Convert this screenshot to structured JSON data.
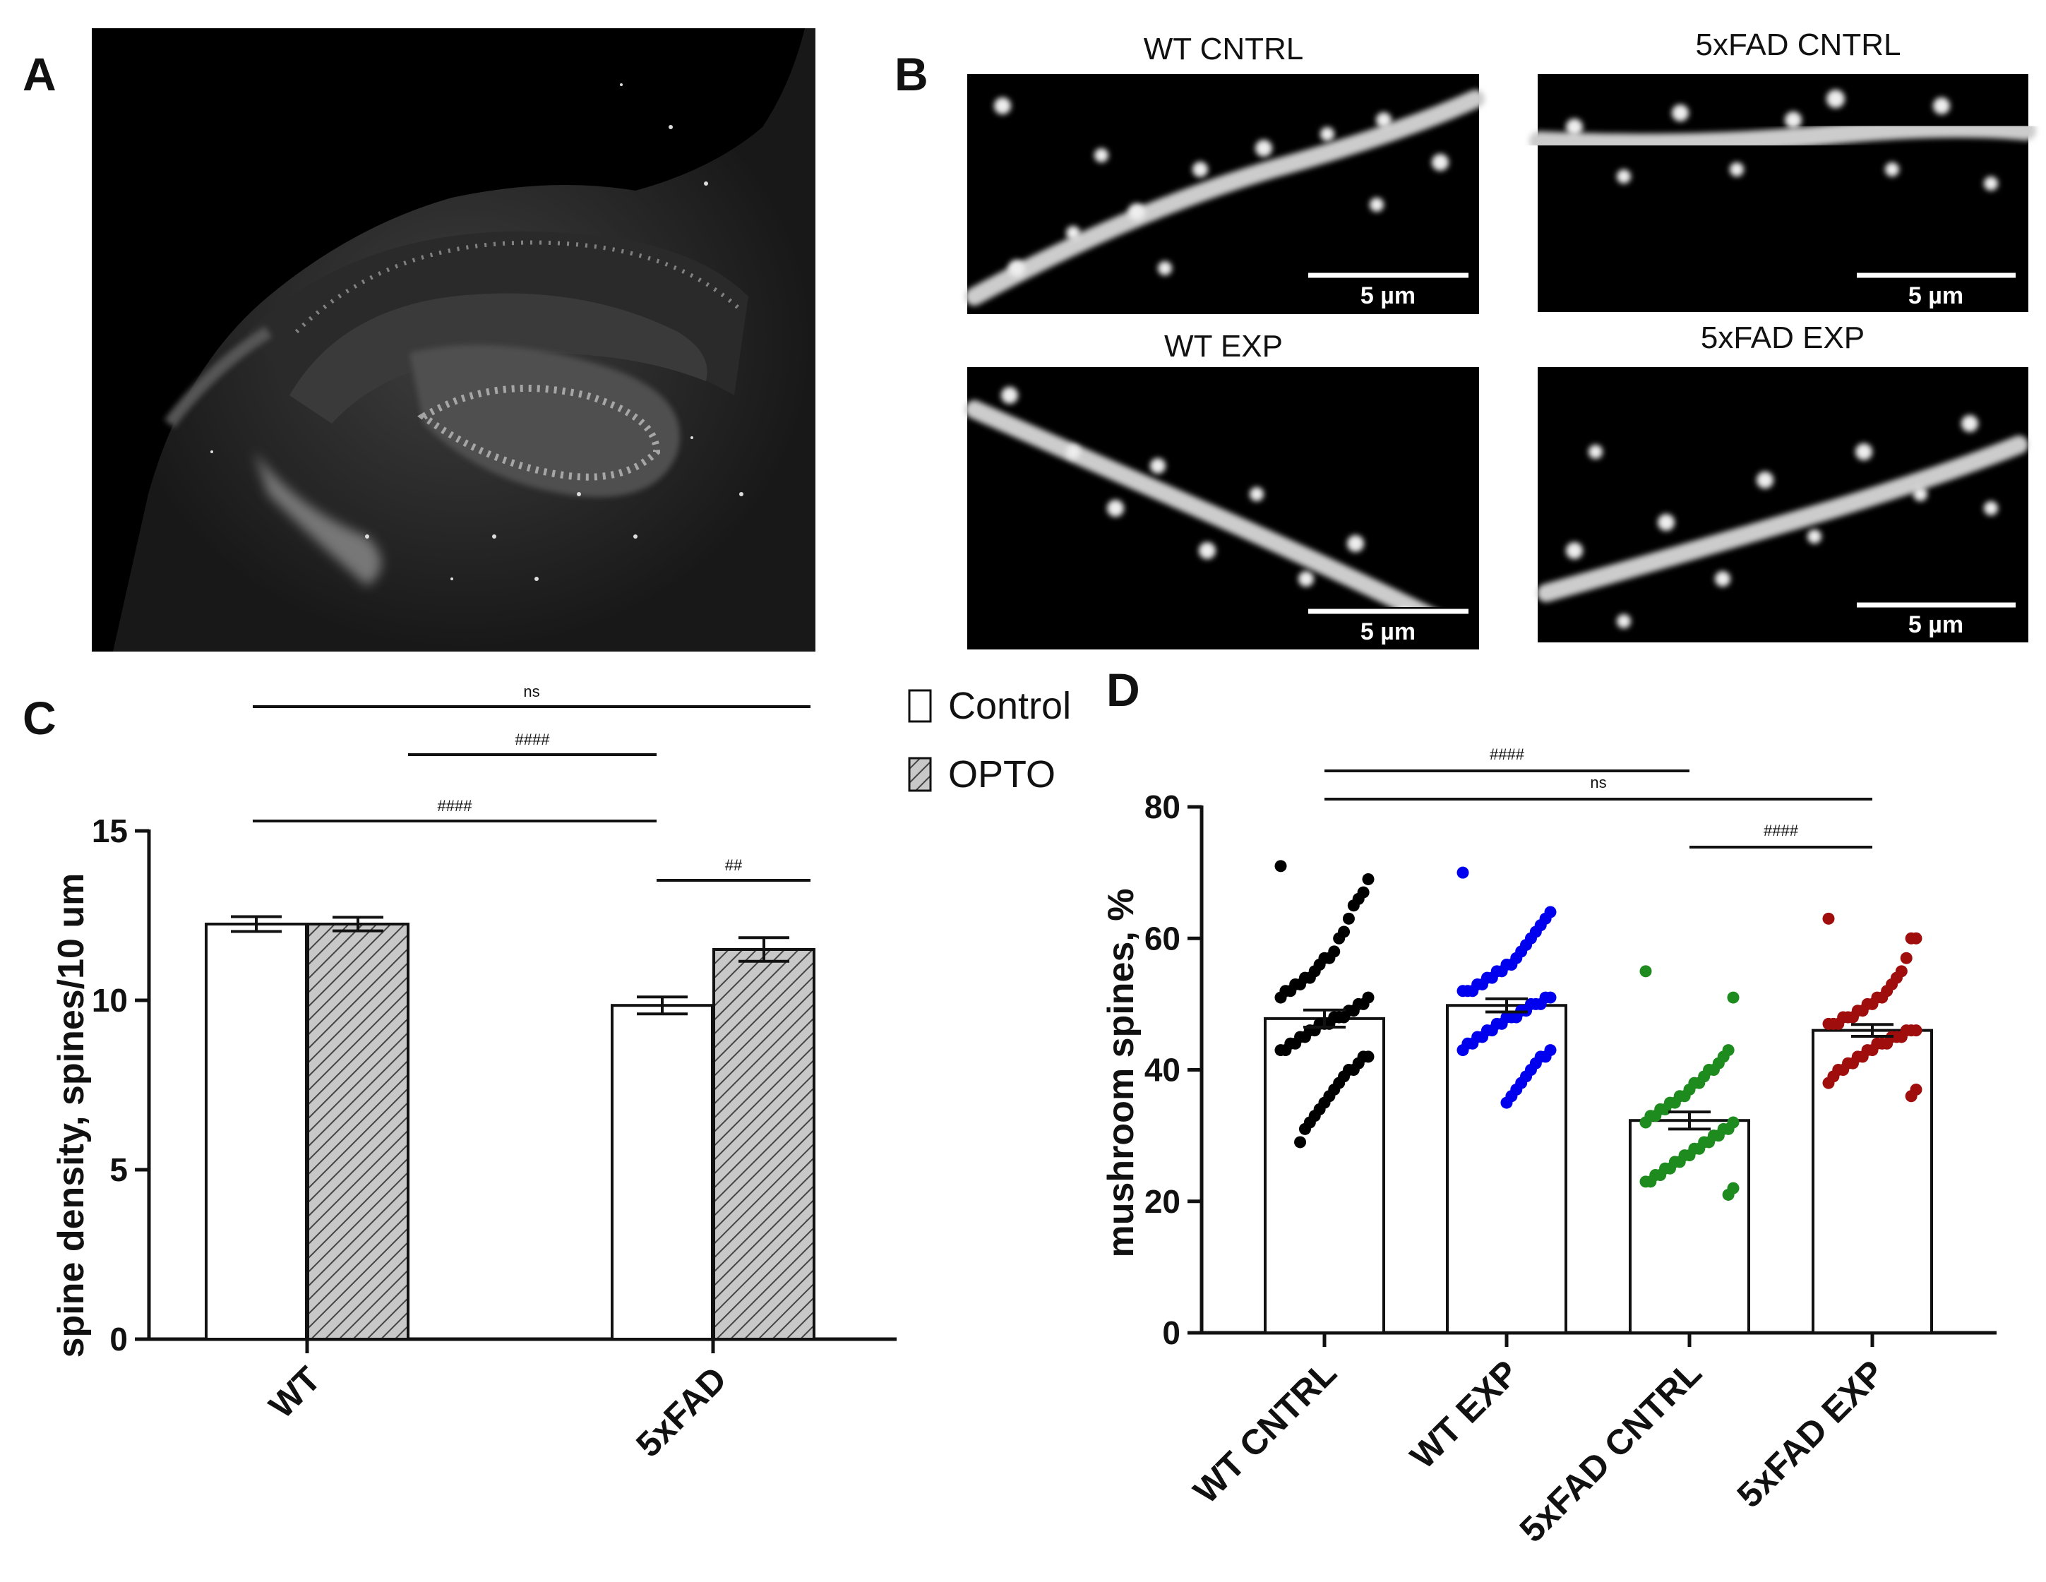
{
  "panels": {
    "A": {
      "letter": "A"
    },
    "B": {
      "letter": "B",
      "scale_bar": "5 µm",
      "images": [
        {
          "title": "WT CNTRL"
        },
        {
          "title": "5xFAD CNTRL"
        },
        {
          "title": "WT EXP"
        },
        {
          "title": "5xFAD EXP"
        }
      ]
    },
    "C": {
      "letter": "C"
    },
    "D": {
      "letter": "D"
    }
  },
  "legend": {
    "items": [
      {
        "label": "Control",
        "pattern": "open"
      },
      {
        "label": "OPTO",
        "pattern": "hatched"
      }
    ]
  },
  "colors": {
    "wt_cntrl": "#000000",
    "wt_exp": "#0000ee",
    "fad_cntrl": "#1e8b1e",
    "fad_exp": "#a00d0d",
    "hatch_fill": "#bbbbbb"
  },
  "chart_data": [
    {
      "panel": "C",
      "type": "bar",
      "ylabel": "spine density, spines/10 um",
      "xlabel": "",
      "ylim": [
        0,
        15
      ],
      "yticks": [
        "0",
        "5",
        "10",
        "15"
      ],
      "categories": [
        "WT",
        "5xFAD"
      ],
      "series": [
        {
          "name": "Control",
          "values": [
            12.25,
            9.85
          ],
          "errors": [
            0.22,
            0.25
          ]
        },
        {
          "name": "OPTO",
          "values": [
            12.25,
            11.5
          ],
          "errors": [
            0.2,
            0.35
          ]
        }
      ],
      "significance": [
        {
          "label": "ns",
          "from": "WT Control",
          "to": "5xFAD OPTO"
        },
        {
          "label": "####",
          "from": "WT OPTO",
          "to": "5xFAD Control"
        },
        {
          "label": "####",
          "from": "WT Control",
          "to": "5xFAD Control"
        },
        {
          "label": "##",
          "from": "5xFAD Control",
          "to": "5xFAD OPTO"
        }
      ]
    },
    {
      "panel": "D",
      "type": "bar",
      "ylabel": "mushroom spines, %",
      "xlabel": "",
      "ylim": [
        0,
        80
      ],
      "yticks": [
        "0",
        "20",
        "40",
        "60",
        "80"
      ],
      "categories": [
        "WT CNTRL",
        "WT EXP",
        "5xFAD CNTRL",
        "5xFAD EXP"
      ],
      "values": [
        47.8,
        49.8,
        32.3,
        46.0
      ],
      "errors": [
        1.3,
        1.0,
        1.3,
        0.9
      ],
      "points": [
        [
          71,
          69,
          67,
          66,
          65,
          63,
          61,
          60,
          58,
          57,
          57,
          56,
          55,
          54,
          54,
          53,
          53,
          52,
          52,
          51,
          51,
          50,
          50,
          49,
          49,
          48,
          48,
          48,
          47,
          47,
          47,
          46,
          46,
          45,
          45,
          44,
          44,
          43,
          43,
          42,
          42,
          41,
          40,
          40,
          39,
          38,
          37,
          36,
          35,
          34,
          33,
          32,
          31,
          29
        ],
        [
          70,
          64,
          63,
          62,
          61,
          60,
          59,
          58,
          57,
          56,
          56,
          55,
          55,
          54,
          54,
          53,
          53,
          52,
          52,
          52,
          51,
          51,
          50,
          50,
          50,
          49,
          49,
          48,
          48,
          48,
          47,
          47,
          46,
          46,
          45,
          45,
          44,
          44,
          43,
          43,
          42,
          42,
          41,
          40,
          39,
          38,
          37,
          36,
          35
        ],
        [
          55,
          51,
          43,
          42,
          41,
          40,
          40,
          39,
          38,
          38,
          37,
          36,
          36,
          35,
          35,
          34,
          34,
          33,
          33,
          32,
          32,
          31,
          31,
          30,
          30,
          29,
          29,
          28,
          28,
          27,
          27,
          26,
          26,
          25,
          25,
          24,
          24,
          23,
          23,
          22,
          21
        ],
        [
          63,
          60,
          60,
          57,
          55,
          54,
          53,
          52,
          51,
          51,
          50,
          50,
          49,
          49,
          48,
          48,
          48,
          47,
          47,
          47,
          46,
          46,
          46,
          45,
          45,
          45,
          44,
          44,
          44,
          43,
          43,
          42,
          42,
          41,
          41,
          40,
          40,
          39,
          38,
          37,
          36
        ]
      ],
      "significance": [
        {
          "label": "####",
          "from": "WT CNTRL",
          "to": "5xFAD CNTRL"
        },
        {
          "label": "ns",
          "from": "WT CNTRL",
          "to": "5xFAD EXP"
        },
        {
          "label": "####",
          "from": "5xFAD CNTRL",
          "to": "5xFAD EXP"
        }
      ]
    }
  ]
}
